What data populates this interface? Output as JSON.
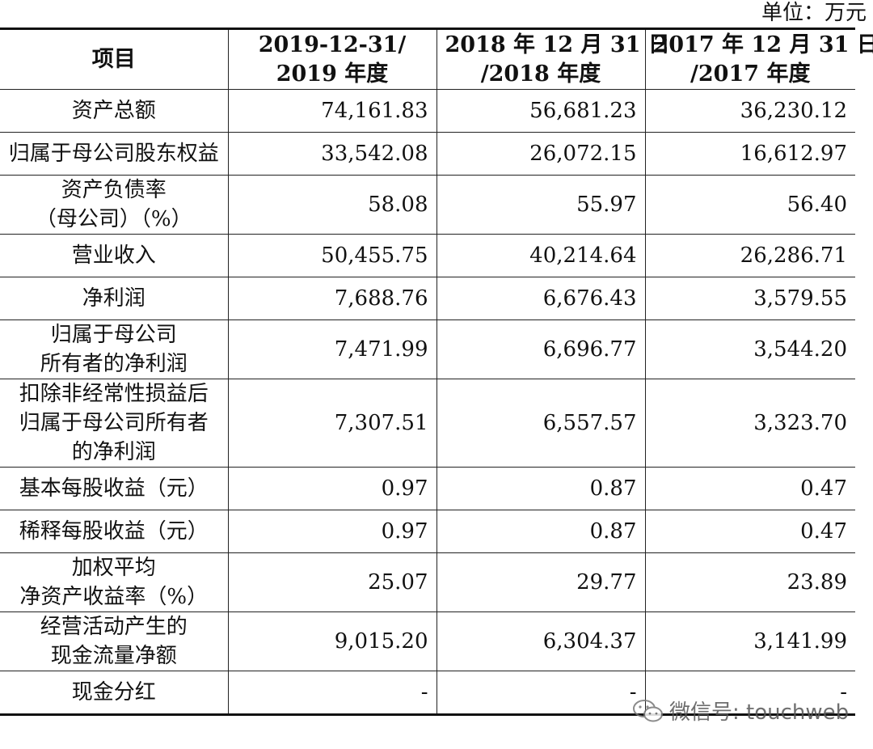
{
  "unit_label": "单位：万元",
  "header": {
    "col0": "项目",
    "col1": [
      "2019-12-31/",
      "2019 年度"
    ],
    "col2": [
      "2018 年 12 月 31 日",
      "/2018 年度"
    ],
    "col3": [
      "2017 年 12 月 31 日",
      "/2017 年度"
    ]
  },
  "rows": [
    {
      "label": [
        "资产总额"
      ],
      "v2019": "74,161.83",
      "v2018": "56,681.23",
      "v2017": "36,230.12"
    },
    {
      "label": [
        "归属于母公司股东权益"
      ],
      "v2019": "33,542.08",
      "v2018": "26,072.15",
      "v2017": "16,612.97"
    },
    {
      "label": [
        "资产负债率",
        "（母公司）（%）"
      ],
      "v2019": "58.08",
      "v2018": "55.97",
      "v2017": "56.40"
    },
    {
      "label": [
        "营业收入"
      ],
      "v2019": "50,455.75",
      "v2018": "40,214.64",
      "v2017": "26,286.71"
    },
    {
      "label": [
        "净利润"
      ],
      "v2019": "7,688.76",
      "v2018": "6,676.43",
      "v2017": "3,579.55"
    },
    {
      "label": [
        "归属于母公司",
        "所有者的净利润"
      ],
      "v2019": "7,471.99",
      "v2018": "6,696.77",
      "v2017": "3,544.20"
    },
    {
      "label": [
        "扣除非经常性损益后",
        "归属于母公司所有者",
        "的净利润"
      ],
      "v2019": "7,307.51",
      "v2018": "6,557.57",
      "v2017": "3,323.70"
    },
    {
      "label": [
        "基本每股收益（元）"
      ],
      "v2019": "0.97",
      "v2018": "0.87",
      "v2017": "0.47"
    },
    {
      "label": [
        "稀释每股收益（元）"
      ],
      "v2019": "0.97",
      "v2018": "0.87",
      "v2017": "0.47"
    },
    {
      "label": [
        "加权平均",
        "净资产收益率（%）"
      ],
      "v2019": "25.07",
      "v2018": "29.77",
      "v2017": "23.89"
    },
    {
      "label": [
        "经营活动产生的",
        "现金流量净额"
      ],
      "v2019": "9,015.20",
      "v2018": "6,304.37",
      "v2017": "3,141.99"
    },
    {
      "label": [
        "现金分红"
      ],
      "v2019": "-",
      "v2018": "-",
      "v2017": "-"
    }
  ],
  "watermark": {
    "text": "微信号: touchweb",
    "icon": "wechat-icon"
  }
}
